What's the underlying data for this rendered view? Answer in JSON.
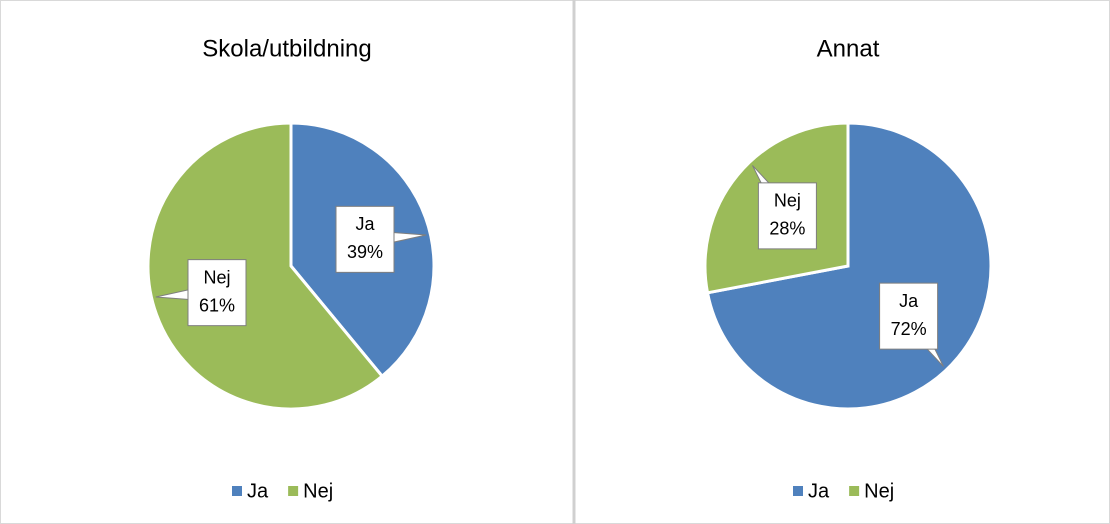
{
  "chart_data": [
    {
      "type": "pie",
      "title": "Skola/utbildning",
      "categories": [
        "Ja",
        "Nej"
      ],
      "values": [
        39,
        61
      ],
      "value_labels": [
        "39%",
        "61%"
      ],
      "colors": [
        "#4f81bd",
        "#9bbb59"
      ],
      "legend": "bottom"
    },
    {
      "type": "pie",
      "title": "Annat",
      "categories": [
        "Ja",
        "Nej"
      ],
      "values": [
        72,
        28
      ],
      "value_labels": [
        "72%",
        "28%"
      ],
      "colors": [
        "#4f81bd",
        "#9bbb59"
      ],
      "legend": "bottom"
    }
  ]
}
